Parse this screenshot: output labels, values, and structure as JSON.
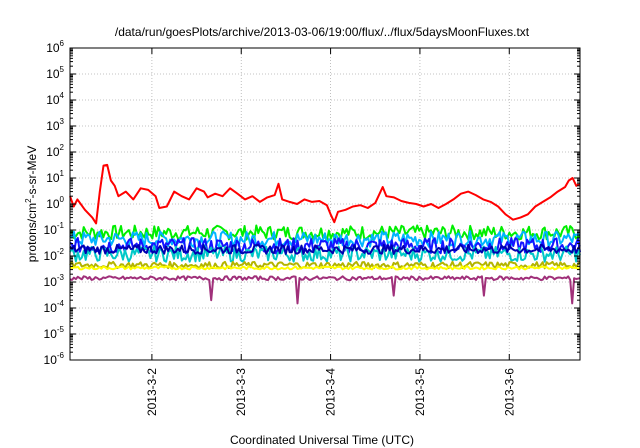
{
  "chart_data": {
    "type": "line",
    "title": "/data/run/goesPlots/archive/2013-03-06/19:00/flux/../flux/5daysMoonFluxes.txt",
    "xlabel": "Coordinated Universal Time (UTC)",
    "ylabel": {
      "prefix": "protons/cm",
      "sup": "2",
      "suffix": "-s-sr-MeV"
    },
    "yscale": "log",
    "ylim": [
      1e-06,
      1000000.0
    ],
    "xlim": [
      "2013-03-01T02:00",
      "2013-03-06T19:00"
    ],
    "grid": true,
    "x_ticks": [
      "2013-3-2",
      "2013-3-3",
      "2013-3-4",
      "2013-3-5",
      "2013-3-6"
    ],
    "y_ticks": [
      {
        "base": "10",
        "exp": "6"
      },
      {
        "base": "10",
        "exp": "5"
      },
      {
        "base": "10",
        "exp": "4"
      },
      {
        "base": "10",
        "exp": "3"
      },
      {
        "base": "10",
        "exp": "2"
      },
      {
        "base": "10",
        "exp": "1"
      },
      {
        "base": "10",
        "exp": "0"
      },
      {
        "base": "10",
        "exp": "-1"
      },
      {
        "base": "10",
        "exp": "-2"
      },
      {
        "base": "10",
        "exp": "-3"
      },
      {
        "base": "10",
        "exp": "-4"
      },
      {
        "base": "10",
        "exp": "-5"
      },
      {
        "base": "10",
        "exp": "-6"
      }
    ],
    "series": [
      {
        "color": "#ff0000",
        "points": [
          [
            "2013-03-01T02:00",
            2
          ],
          [
            "2013-03-01T03:00",
            0.8
          ],
          [
            "2013-03-01T04:00",
            1.5
          ],
          [
            "2013-03-01T06:00",
            0.6
          ],
          [
            "2013-03-01T08:00",
            0.3
          ],
          [
            "2013-03-01T09:00",
            0.18
          ],
          [
            "2013-03-01T10:00",
            3
          ],
          [
            "2013-03-01T11:00",
            30
          ],
          [
            "2013-03-01T12:00",
            32
          ],
          [
            "2013-03-01T13:00",
            8
          ],
          [
            "2013-03-01T14:00",
            5
          ],
          [
            "2013-03-01T15:00",
            2
          ],
          [
            "2013-03-01T17:00",
            3
          ],
          [
            "2013-03-01T19:00",
            1.5
          ],
          [
            "2013-03-01T21:00",
            4
          ],
          [
            "2013-03-01T23:00",
            3.5
          ],
          [
            "2013-03-02T01:00",
            2
          ],
          [
            "2013-03-02T02:00",
            0.7
          ],
          [
            "2013-03-02T04:00",
            0.8
          ],
          [
            "2013-03-02T06:00",
            3
          ],
          [
            "2013-03-02T08:00",
            2
          ],
          [
            "2013-03-02T10:00",
            1.5
          ],
          [
            "2013-03-02T12:00",
            4
          ],
          [
            "2013-03-02T14:00",
            3
          ],
          [
            "2013-03-02T15:00",
            1.8
          ],
          [
            "2013-03-02T17:00",
            2.5
          ],
          [
            "2013-03-02T19:00",
            2
          ],
          [
            "2013-03-02T21:00",
            4
          ],
          [
            "2013-03-02T23:00",
            2.5
          ],
          [
            "2013-03-03T01:00",
            1.5
          ],
          [
            "2013-03-03T03:00",
            2
          ],
          [
            "2013-03-03T05:00",
            1.2
          ],
          [
            "2013-03-03T07:00",
            1.8
          ],
          [
            "2013-03-03T09:00",
            2.2
          ],
          [
            "2013-03-03T10:00",
            6
          ],
          [
            "2013-03-03T11:00",
            1.5
          ],
          [
            "2013-03-03T13:00",
            1.2
          ],
          [
            "2013-03-03T15:00",
            1
          ],
          [
            "2013-03-03T17:00",
            1.5
          ],
          [
            "2013-03-03T19:00",
            1.2
          ],
          [
            "2013-03-03T21:00",
            1.3
          ],
          [
            "2013-03-03T23:00",
            0.9
          ],
          [
            "2013-03-04T00:00",
            0.4
          ],
          [
            "2013-03-04T01:00",
            0.2
          ],
          [
            "2013-03-04T02:00",
            0.5
          ],
          [
            "2013-03-04T04:00",
            0.6
          ],
          [
            "2013-03-04T06:00",
            0.8
          ],
          [
            "2013-03-04T08:00",
            0.9
          ],
          [
            "2013-03-04T10:00",
            0.7
          ],
          [
            "2013-03-04T12:00",
            1.1
          ],
          [
            "2013-03-04T14:00",
            4.5
          ],
          [
            "2013-03-04T15:00",
            2
          ],
          [
            "2013-03-04T17:00",
            1.8
          ],
          [
            "2013-03-04T19:00",
            1.3
          ],
          [
            "2013-03-04T21:00",
            1.1
          ],
          [
            "2013-03-04T23:00",
            1
          ],
          [
            "2013-03-05T01:00",
            0.8
          ],
          [
            "2013-03-05T03:00",
            1
          ],
          [
            "2013-03-05T05:00",
            0.7
          ],
          [
            "2013-03-05T07:00",
            1
          ],
          [
            "2013-03-05T09:00",
            1.5
          ],
          [
            "2013-03-05T11:00",
            2.5
          ],
          [
            "2013-03-05T13:00",
            3
          ],
          [
            "2013-03-05T15:00",
            2.2
          ],
          [
            "2013-03-05T17:00",
            1.5
          ],
          [
            "2013-03-05T19:00",
            1.2
          ],
          [
            "2013-03-05T21:00",
            0.8
          ],
          [
            "2013-03-05T23:00",
            0.4
          ],
          [
            "2013-03-06T01:00",
            0.25
          ],
          [
            "2013-03-06T03:00",
            0.3
          ],
          [
            "2013-03-06T05:00",
            0.4
          ],
          [
            "2013-03-06T07:00",
            0.8
          ],
          [
            "2013-03-06T09:00",
            1.2
          ],
          [
            "2013-03-06T11:00",
            1.8
          ],
          [
            "2013-03-06T13:00",
            3
          ],
          [
            "2013-03-06T15:00",
            4.5
          ],
          [
            "2013-03-06T16:00",
            8
          ],
          [
            "2013-03-06T17:00",
            10
          ],
          [
            "2013-03-06T18:00",
            5
          ],
          [
            "2013-03-06T19:00",
            6
          ]
        ]
      },
      {
        "color": "#00ee00",
        "base": 0.08,
        "jitter": 0.55,
        "dips": []
      },
      {
        "color": "#00b4ff",
        "base": 0.045,
        "jitter": 0.6,
        "dips": []
      },
      {
        "color": "#1414ff",
        "base": 0.025,
        "jitter": 0.6,
        "dips": []
      },
      {
        "color": "#00c8c8",
        "base": 0.012,
        "jitter": 0.6,
        "dips": []
      },
      {
        "color": "#0000b0",
        "base": 0.018,
        "jitter": 0.35,
        "dips": []
      },
      {
        "color": "#b4b400",
        "base": 0.0045,
        "jitter": 0.25,
        "dips": []
      },
      {
        "color": "#ffff00",
        "base": 0.0035,
        "jitter": 0.12,
        "dips": []
      },
      {
        "color": "#a0307a",
        "base": 0.0014,
        "jitter": 0.15,
        "dips": [
          [
            "2013-03-02T16:00",
            0.0002
          ],
          [
            "2013-03-03T15:00",
            0.00015
          ],
          [
            "2013-03-04T17:00",
            0.0003
          ],
          [
            "2013-03-05T17:00",
            0.0003
          ],
          [
            "2013-03-06T17:00",
            0.00015
          ]
        ]
      }
    ]
  }
}
